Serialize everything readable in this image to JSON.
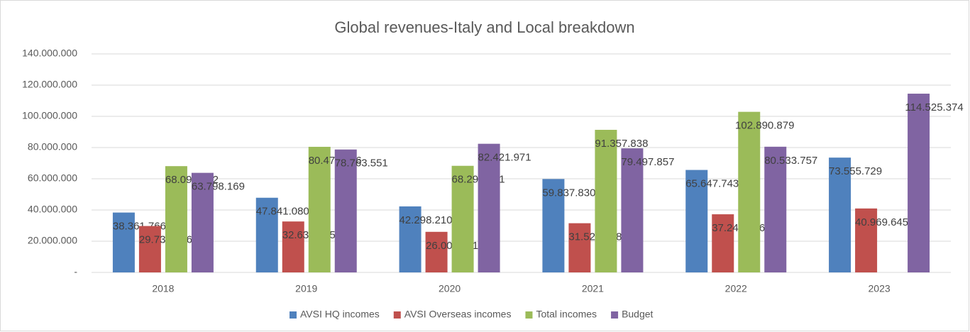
{
  "chart_data": {
    "type": "bar",
    "title": "Global revenues-Italy and Local breakdown",
    "categories": [
      "2018",
      "2019",
      "2020",
      "2021",
      "2022",
      "2023"
    ],
    "series": [
      {
        "name": "AVSI HQ incomes",
        "color": "#4f81bd",
        "values": [
          38361766,
          47841080,
          42298210,
          59837830,
          65647743,
          73555729
        ],
        "value_labels": [
          "38.361.766",
          "47.841.080",
          "42.298.210",
          "59.837.830",
          "65.647.743",
          "73.555.729"
        ]
      },
      {
        "name": "AVSI Overseas incomes",
        "color": "#c0504d",
        "values": [
          29735706,
          32634455,
          26001411,
          31520008,
          37243136,
          40969645
        ],
        "value_labels": [
          "29.735.706",
          "32.634.455",
          "26.001.411",
          "31.520.008",
          "37.243.136",
          "40.969.645"
        ]
      },
      {
        "name": "Total incomes",
        "color": "#9bbb59",
        "values": [
          68097472,
          80475536,
          68299621,
          91357838,
          102890879,
          null
        ],
        "value_labels": [
          "68.097.472",
          "80.475.536",
          "68.299.621",
          "91.357.838",
          "102.890.879",
          null
        ]
      },
      {
        "name": "Budget",
        "color": "#8064a2",
        "values": [
          63798169,
          78763551,
          82421971,
          79497857,
          80533757,
          114525374
        ],
        "value_labels": [
          "63.798.169",
          "78.763.551",
          "82.421.971",
          "79.497.857",
          "80.533.757",
          "114.525.374"
        ]
      }
    ],
    "ylim": [
      0,
      140000000
    ],
    "yticks": [
      {
        "value": 0,
        "label": "-"
      },
      {
        "value": 20000000,
        "label": "20.000.000"
      },
      {
        "value": 40000000,
        "label": "40.000.000"
      },
      {
        "value": 60000000,
        "label": "60.000.000"
      },
      {
        "value": 80000000,
        "label": "80.000.000"
      },
      {
        "value": 100000000,
        "label": "100.000.000"
      },
      {
        "value": 120000000,
        "label": "120.000.000"
      },
      {
        "value": 140000000,
        "label": "140.000.000"
      }
    ],
    "grid": true,
    "legend": "bottom"
  }
}
